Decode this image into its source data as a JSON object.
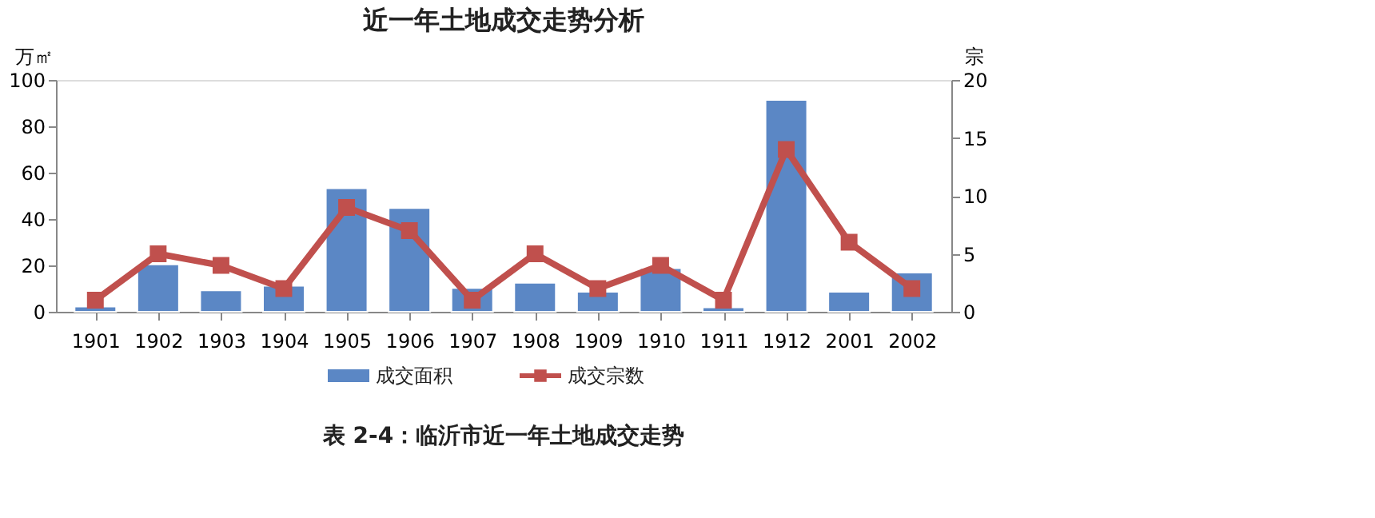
{
  "chart_data": {
    "type": "bar",
    "title": "近一年土地成交走势分析",
    "ylabel": "万㎡",
    "y2label": "宗",
    "categories": [
      "1901",
      "1902",
      "1903",
      "1904",
      "1905",
      "1906",
      "1907",
      "1908",
      "1909",
      "1910",
      "1911",
      "1912",
      "2001",
      "2002"
    ],
    "series": [
      {
        "name": "成交面积",
        "color": "#5b87c5",
        "values": [
          2.2,
          20.4,
          9.2,
          11.2,
          53.3,
          44.7,
          10.3,
          12.5,
          8.6,
          18.8,
          1.9,
          91.4,
          8.6,
          16.9
        ]
      },
      {
        "name": "成交宗数",
        "type": "line",
        "axis": "y2",
        "color": "#c0504d",
        "marker": "square",
        "values": [
          1,
          5,
          4,
          2,
          9,
          7,
          1,
          5,
          2,
          4,
          1,
          14,
          6,
          2
        ]
      }
    ],
    "ylim": [
      0,
      100
    ],
    "yticks": [
      0,
      20,
      40,
      60,
      80,
      100
    ],
    "y2lim": [
      0,
      20
    ],
    "y2ticks": [
      0,
      5,
      10,
      15,
      20
    ],
    "grid": false,
    "legend": "bottom",
    "annotations": [
      "表 2-4：临沂市近一年土地成交走势"
    ]
  }
}
